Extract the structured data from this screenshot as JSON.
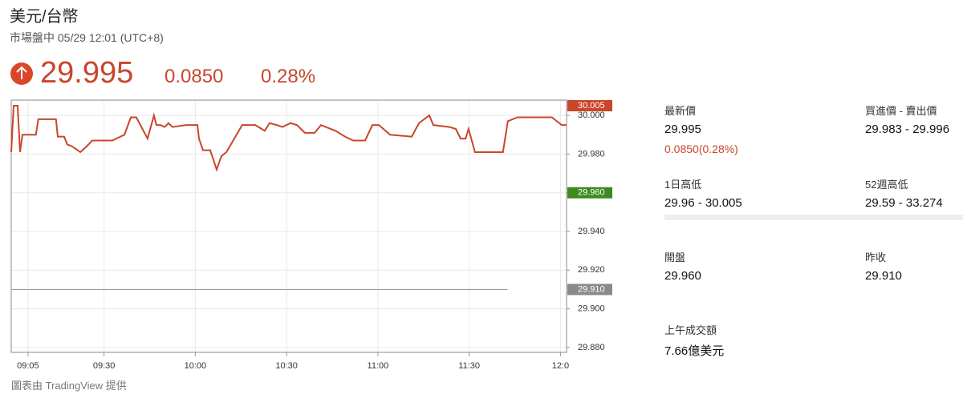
{
  "header": {
    "title": "美元/台幣",
    "subtitle": "市場盤中 05/29 12:01 (UTC+8)",
    "price": "29.995",
    "change": "0.0850",
    "change_pct": "0.28%"
  },
  "chart_data": {
    "type": "line",
    "x": [
      539.5,
      540.3,
      541.6,
      542.4,
      543.2,
      544.5,
      547.6,
      548.4,
      553.7,
      554.2,
      554.8,
      556.9,
      557.9,
      559.5,
      562.2,
      564.3,
      566.1,
      572.7,
      576.7,
      578.8,
      580.6,
      584.3,
      586.4,
      587.2,
      588.5,
      589.9,
      591.2,
      592.5,
      597.0,
      600.7,
      601.2,
      602.5,
      604.9,
      607.0,
      608.6,
      610.2,
      612.8,
      615.4,
      619.7,
      622.8,
      624.4,
      626.8,
      628.6,
      631.3,
      633.4,
      636.0,
      639.2,
      641.3,
      646.1,
      649.2,
      651.9,
      655.8,
      658.2,
      660.3,
      664.0,
      671.1,
      673.5,
      676.9,
      678.2,
      683.5,
      685.6,
      687.2,
      688.8,
      689.8,
      691.9,
      701.1,
      702.7,
      705.9,
      717.2,
      720.4,
      722.0
    ],
    "series": [
      {
        "name": "美元/台幣",
        "color": "#c8462a",
        "values": [
          29.981,
          30.005,
          30.005,
          29.981,
          29.99,
          29.99,
          29.99,
          29.998,
          29.998,
          29.998,
          29.989,
          29.989,
          29.985,
          29.984,
          29.981,
          29.984,
          29.987,
          29.987,
          29.99,
          29.999,
          29.999,
          29.988,
          30.0,
          29.995,
          29.995,
          29.994,
          29.996,
          29.994,
          29.995,
          29.995,
          29.988,
          29.982,
          29.982,
          29.972,
          29.979,
          29.981,
          29.988,
          29.995,
          29.995,
          29.992,
          29.996,
          29.995,
          29.994,
          29.996,
          29.995,
          29.991,
          29.991,
          29.995,
          29.992,
          29.989,
          29.987,
          29.987,
          29.995,
          29.995,
          29.99,
          29.989,
          29.996,
          30.0,
          29.995,
          29.994,
          29.993,
          29.988,
          29.988,
          29.993,
          29.981,
          29.981,
          29.997,
          29.999,
          29.999,
          29.995,
          29.995
        ]
      }
    ],
    "xlim": [
      539.5,
      722.0
    ],
    "xticks": [
      {
        "value": 545,
        "label": "09:05"
      },
      {
        "value": 570,
        "label": "09:30"
      },
      {
        "value": 600,
        "label": "10:00"
      },
      {
        "value": 630,
        "label": "10:30"
      },
      {
        "value": 660,
        "label": "11:00"
      },
      {
        "value": 690,
        "label": "11:30"
      },
      {
        "value": 720,
        "label": "12:0"
      }
    ],
    "ylim": [
      29.8775,
      30.0079
    ],
    "yticks": [
      {
        "value": 30.0,
        "label": "30.000"
      },
      {
        "value": 29.98,
        "label": "29.980"
      },
      {
        "value": 29.96,
        "label": "29.960"
      },
      {
        "value": 29.94,
        "label": "29.940"
      },
      {
        "value": 29.92,
        "label": "29.920"
      },
      {
        "value": 29.9,
        "label": "29.900"
      },
      {
        "value": 29.88,
        "label": "29.880"
      }
    ],
    "price_tags": [
      {
        "value": 30.005,
        "label": "30.005",
        "color": "#c8462a"
      },
      {
        "value": 29.96,
        "label": "29.960",
        "color": "#3d8a1f"
      },
      {
        "value": 29.91,
        "label": "29.910",
        "color": "#8a8a8a"
      }
    ],
    "reference_line": {
      "value": 29.91,
      "color": "#999999"
    },
    "grid": true,
    "footer": "圖表由 TradingView 提供"
  },
  "stats": [
    {
      "label": "最新價",
      "value": "29.995",
      "extra": "0.0850(0.28%)"
    },
    {
      "label": "買進價 - 賣出價",
      "value": "29.983 - 29.996"
    },
    {
      "label": "1日高低",
      "value": "29.96 - 30.005"
    },
    {
      "label": "52週高低",
      "value": "29.59 - 33.274"
    },
    {
      "label": "開盤",
      "value": "29.960"
    },
    {
      "label": "昨收",
      "value": "29.910"
    },
    {
      "label": "上午成交額",
      "value": "7.66億美元"
    }
  ]
}
